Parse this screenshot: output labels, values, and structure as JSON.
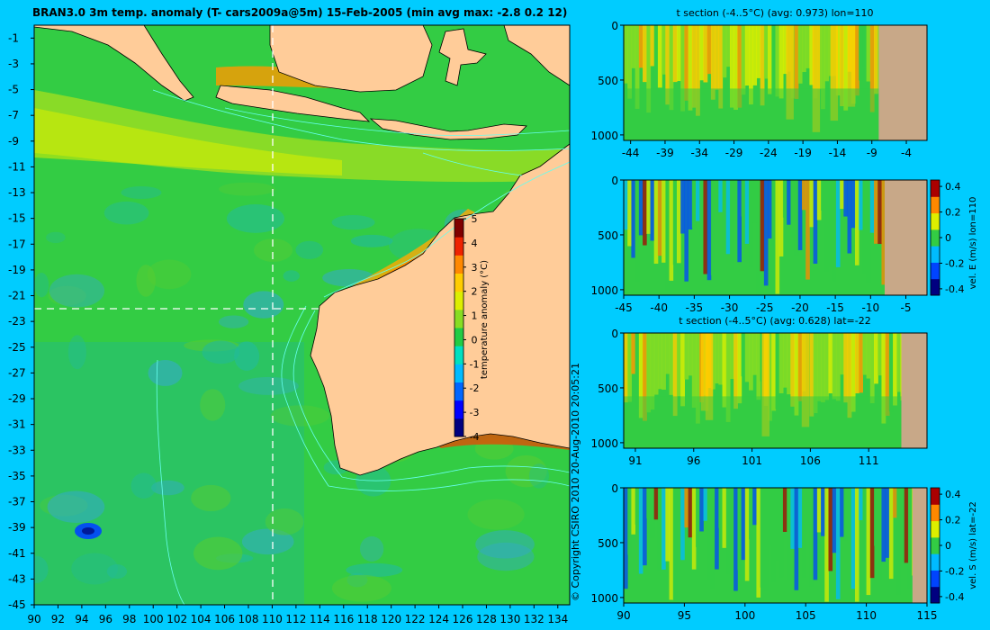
{
  "colors": {
    "background": "#00ccff",
    "land": "#ffcc99",
    "section_bottom": "#c8a888",
    "coast": "#000000",
    "contour": "#66ffee",
    "dash": "#ffffff"
  },
  "colormap": [
    "#000080",
    "#0000ff",
    "#0066ff",
    "#00bbff",
    "#00e0c0",
    "#22cc44",
    "#88dd22",
    "#ddee00",
    "#ffcc00",
    "#ff8800",
    "#ee2200",
    "#800000"
  ],
  "chart_data": [
    {
      "type": "heatmap",
      "title": "BRAN3.0 3m temp. anomaly (T- cars2009a@5m) 15-Feb-2005 (min avg max: -2.8 0.2 12)",
      "x_ticks": [
        "90",
        "92",
        "94",
        "96",
        "98",
        "100",
        "102",
        "104",
        "106",
        "108",
        "110",
        "112",
        "114",
        "116",
        "118",
        "120",
        "122",
        "124",
        "126",
        "128",
        "130",
        "132",
        "134"
      ],
      "y_ticks": [
        "-1",
        "-3",
        "-5",
        "-7",
        "-9",
        "-11",
        "-13",
        "-15",
        "-17",
        "-19",
        "-21",
        "-23",
        "-25",
        "-27",
        "-29",
        "-31",
        "-33",
        "-35",
        "-37",
        "-39",
        "-41",
        "-43",
        "-45"
      ],
      "xlim": [
        90,
        135
      ],
      "ylim": [
        -45,
        0
      ],
      "section_lines": {
        "lon": 110,
        "lat": -22
      },
      "colorbar": {
        "label": "temperature anomaly (°C)",
        "ticks": [
          "5",
          "4",
          "3",
          "2",
          "1",
          "0",
          "-1",
          "-2",
          "-3",
          "-4"
        ],
        "range": [
          -4,
          5
        ]
      },
      "copyright": "© Copyright CSIRO 2010   20-Aug-2010 20:05:21"
    },
    {
      "type": "heatmap",
      "title": "t section (-4..5°C) (avg: 0.973) lon=110",
      "x_ticks": [
        "-44",
        "-39",
        "-34",
        "-29",
        "-24",
        "-19",
        "-14",
        "-9",
        "-4"
      ],
      "y_ticks": [
        "0",
        "500",
        "1000"
      ],
      "xlim": [
        -45,
        -1
      ],
      "ylim": [
        1050,
        0
      ],
      "avg": 0.973
    },
    {
      "type": "heatmap",
      "title": "",
      "x_ticks": [
        "-45",
        "-40",
        "-35",
        "-30",
        "-25",
        "-20",
        "-15",
        "-10",
        "-5"
      ],
      "y_ticks": [
        "0",
        "500",
        "1000"
      ],
      "xlim": [
        -45,
        -2
      ],
      "ylim": [
        1050,
        0
      ],
      "colorbar": {
        "label": "vel. E (m/s) lon=110",
        "ticks": [
          "0.4",
          "0.2",
          "0",
          "-0.2",
          "-0.4"
        ],
        "range": [
          -0.45,
          0.45
        ]
      }
    },
    {
      "type": "heatmap",
      "title": "t section (-4..5°C) (avg: 0.628) lat=-22",
      "x_ticks": [
        "91",
        "96",
        "101",
        "106",
        "111"
      ],
      "y_ticks": [
        "0",
        "500",
        "1000"
      ],
      "xlim": [
        90,
        116
      ],
      "ylim": [
        1050,
        0
      ],
      "avg": 0.628
    },
    {
      "type": "heatmap",
      "title": "",
      "x_ticks": [
        "90",
        "95",
        "100",
        "105",
        "110",
        "115"
      ],
      "y_ticks": [
        "0",
        "500",
        "1000"
      ],
      "xlim": [
        90,
        115
      ],
      "ylim": [
        1050,
        0
      ],
      "colorbar": {
        "label": "vel. S (m/s) lat=-22",
        "ticks": [
          "0.4",
          "0.2",
          "0",
          "-0.2",
          "-0.4"
        ],
        "range": [
          -0.45,
          0.45
        ]
      }
    }
  ]
}
